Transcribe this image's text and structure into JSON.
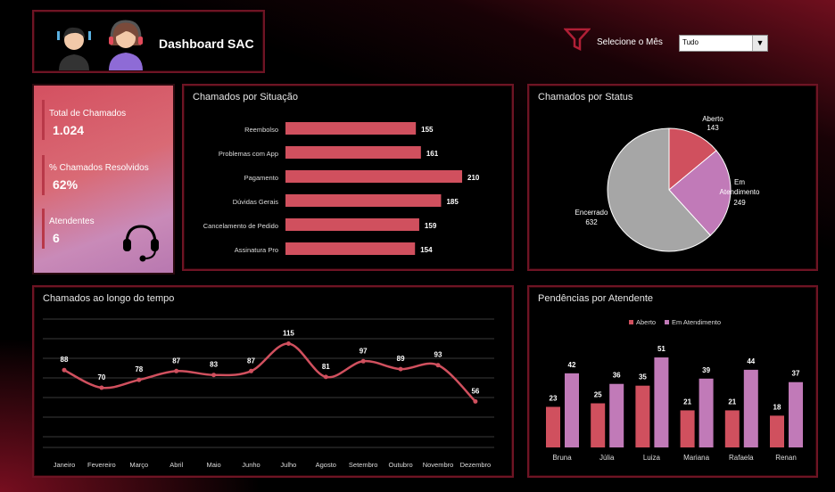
{
  "header": {
    "title": "Dashboard SAC",
    "filter_label": "Selecione o Mês",
    "filter_value": "Tudo"
  },
  "kpis": [
    {
      "label": "Total de Chamados",
      "value": "1.024"
    },
    {
      "label": "% Chamados Resolvidos",
      "value": "62%"
    },
    {
      "label": "Atendentes",
      "value": "6"
    }
  ],
  "colors": {
    "accent": "#d0505e",
    "pink": "#c17ab8",
    "gray": "#a6a6a6",
    "border": "#6e1424"
  },
  "chart_data": [
    {
      "type": "bar",
      "orientation": "horizontal",
      "title": "Chamados por Situação",
      "categories": [
        "Reembolso",
        "Problemas com App",
        "Pagamento",
        "Dúvidas Gerais",
        "Cancelamento de Pedido",
        "Assinatura Pro"
      ],
      "values": [
        155,
        161,
        210,
        185,
        159,
        154
      ]
    },
    {
      "type": "pie",
      "title": "Chamados por Status",
      "categories": [
        "Aberto",
        "Em Atendimento",
        "Encerrado"
      ],
      "values": [
        143,
        249,
        632
      ],
      "colors": [
        "#d0505e",
        "#c17ab8",
        "#a6a6a6"
      ]
    },
    {
      "type": "line",
      "title": "Chamados ao longo do tempo",
      "categories": [
        "Janeiro",
        "Fevereiro",
        "Março",
        "Abril",
        "Maio",
        "Junho",
        "Julho",
        "Agosto",
        "Setembro",
        "Outubro",
        "Novembro",
        "Dezembro"
      ],
      "values": [
        88,
        70,
        78,
        87,
        83,
        87,
        115,
        81,
        97,
        89,
        93,
        56
      ],
      "ylim": [
        0,
        140
      ],
      "grid": true
    },
    {
      "type": "bar",
      "title": "Pendências por Atendente",
      "legend": "top",
      "categories": [
        "Bruna",
        "Júlia",
        "Luiza",
        "Mariana",
        "Rafaela",
        "Renan"
      ],
      "series": [
        {
          "name": "Aberto",
          "values": [
            23,
            25,
            35,
            21,
            21,
            18
          ]
        },
        {
          "name": "Em Atendimento",
          "values": [
            42,
            36,
            51,
            39,
            44,
            37
          ]
        }
      ]
    }
  ]
}
